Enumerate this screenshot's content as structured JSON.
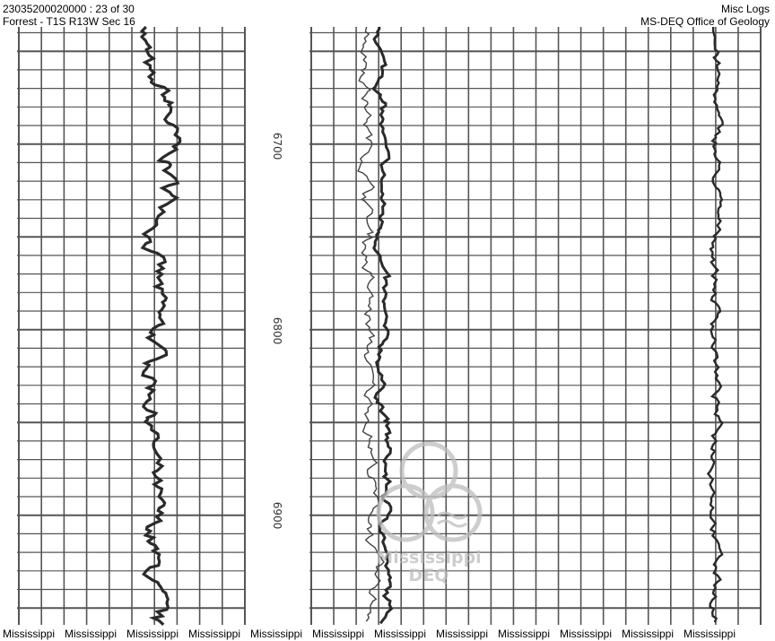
{
  "header": {
    "well_id_page": "23035200020000 : 23 of 30",
    "location": "Forrest - T1S R13W Sec 16",
    "doc_type": "Misc Logs",
    "agency": "MS-DEQ Office of Geology"
  },
  "depth_labels": [
    "6700",
    "6800",
    "6900"
  ],
  "watermark": {
    "line1": "Mississippi",
    "line2": "DEQ"
  },
  "footer": {
    "labels": [
      "Mississippi",
      "Mississippi",
      "Mississippi",
      "Mississippi",
      "Mississippi",
      "Mississippi",
      "Mississippi",
      "Mississippi",
      "Mississippi",
      "Mississippi",
      "Mississippi",
      "Mississippi"
    ]
  },
  "colors": {
    "grid": "#555555",
    "curve": "#2a2a2a",
    "watermark": "#bdbdbd"
  }
}
